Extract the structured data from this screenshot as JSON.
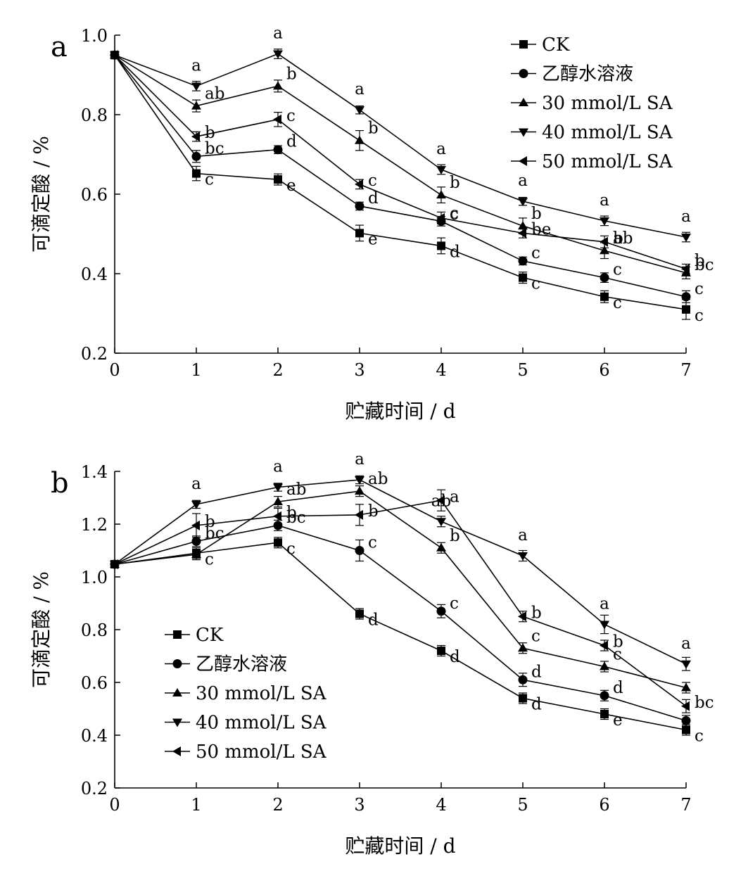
{
  "chart_data": [
    {
      "type": "line",
      "panel_label": "a",
      "xlabel": "贮藏时间 / d",
      "ylabel": "可滴定酸 / %",
      "x": [
        0,
        1,
        2,
        3,
        4,
        5,
        6,
        7
      ],
      "xlim": [
        0,
        7
      ],
      "ylim": [
        0.2,
        1.0
      ],
      "xticks": [
        "0",
        "1",
        "2",
        "3",
        "4",
        "5",
        "6",
        "7"
      ],
      "yticks": [
        "0.2",
        "0.4",
        "0.6",
        "0.8",
        "1.0"
      ],
      "grid": false,
      "legend_position": "top-right",
      "series": [
        {
          "name": "CK",
          "marker": "square",
          "values": [
            0.95,
            0.652,
            0.637,
            0.502,
            0.47,
            0.39,
            0.342,
            0.31
          ],
          "errors": [
            0,
            0.018,
            0.014,
            0.02,
            0.02,
            0.014,
            0.015,
            0.025
          ],
          "labels": [
            "",
            "c",
            "e",
            "e",
            "d",
            "c",
            "c",
            "c"
          ]
        },
        {
          "name": "乙醇水溶液",
          "marker": "circle",
          "values": [
            0.95,
            0.695,
            0.712,
            0.57,
            0.532,
            0.432,
            0.39,
            0.342
          ],
          "errors": [
            0,
            0.015,
            0.01,
            0.01,
            0.012,
            0.01,
            0.012,
            0.015
          ],
          "labels": [
            "",
            "bc",
            "d",
            "d",
            "c",
            "c",
            "c",
            "c"
          ]
        },
        {
          "name": "30 mmol/L SA",
          "marker": "triangle-up",
          "values": [
            0.95,
            0.822,
            0.872,
            0.735,
            0.598,
            0.52,
            0.458,
            0.402
          ],
          "errors": [
            0,
            0.015,
            0.015,
            0.025,
            0.02,
            0.02,
            0.02,
            0.015
          ],
          "labels": [
            "",
            "ab",
            "b",
            "b",
            "b",
            "b",
            "b",
            "b"
          ]
        },
        {
          "name": "40 mmol/L SA",
          "marker": "triangle-down",
          "values": [
            0.95,
            0.872,
            0.953,
            0.812,
            0.662,
            0.582,
            0.533,
            0.492
          ],
          "errors": [
            0,
            0.012,
            0.012,
            0.01,
            0.012,
            0.01,
            0.012,
            0.012
          ],
          "labels": [
            "",
            "a",
            "a",
            "a",
            "a",
            "a",
            "a",
            "a"
          ]
        },
        {
          "name": "50 mmol/L SA",
          "marker": "triangle-left",
          "values": [
            0.95,
            0.745,
            0.788,
            0.625,
            0.54,
            0.502,
            0.48,
            0.412
          ],
          "errors": [
            0,
            0.012,
            0.018,
            0.012,
            0.015,
            0.012,
            0.015,
            0.012
          ],
          "labels": [
            "",
            "b",
            "c",
            "c",
            "c",
            "be",
            "ab",
            "bc"
          ]
        }
      ]
    },
    {
      "type": "line",
      "panel_label": "b",
      "xlabel": "贮藏时间 / d",
      "ylabel": "可滴定酸 / %",
      "x": [
        0,
        1,
        2,
        3,
        4,
        5,
        6,
        7
      ],
      "xlim": [
        0,
        7
      ],
      "ylim": [
        0.2,
        1.4
      ],
      "xticks": [
        "0",
        "1",
        "2",
        "3",
        "4",
        "5",
        "6",
        "7"
      ],
      "yticks": [
        "0.2",
        "0.4",
        "0.6",
        "0.8",
        "1.0",
        "1.2",
        "1.4"
      ],
      "grid": false,
      "legend_position": "bottom-left",
      "series": [
        {
          "name": "CK",
          "marker": "square",
          "values": [
            1.048,
            1.09,
            1.13,
            0.86,
            0.72,
            0.54,
            0.48,
            0.42
          ],
          "errors": [
            0,
            0.02,
            0.02,
            0.02,
            0.02,
            0.02,
            0.02,
            0.02
          ],
          "labels": [
            "",
            "c",
            "c",
            "d",
            "d",
            "d",
            "e",
            "c"
          ]
        },
        {
          "name": "乙醇水溶液",
          "marker": "circle",
          "values": [
            1.048,
            1.135,
            1.195,
            1.1,
            0.87,
            0.61,
            0.55,
            0.455
          ],
          "errors": [
            0,
            0.02,
            0.02,
            0.04,
            0.025,
            0.025,
            0.02,
            0.02
          ],
          "labels": [
            "",
            "bc",
            "bc",
            "c",
            "c",
            "d",
            "d",
            ""
          ]
        },
        {
          "name": "30 mmol/L SA",
          "marker": "triangle-up",
          "values": [
            1.048,
            1.085,
            1.285,
            1.325,
            1.11,
            0.73,
            0.66,
            0.58
          ],
          "errors": [
            0,
            0.02,
            0.02,
            0.02,
            0.02,
            0.02,
            0.02,
            0.02
          ],
          "labels": [
            "",
            "",
            "ab",
            "ab",
            "b",
            "c",
            "c",
            ""
          ]
        },
        {
          "name": "40 mmol/L SA",
          "marker": "triangle-down",
          "values": [
            1.048,
            1.275,
            1.34,
            1.368,
            1.21,
            1.08,
            0.82,
            0.67
          ],
          "errors": [
            0,
            0.015,
            0.015,
            0.015,
            0.02,
            0.02,
            0.035,
            0.025
          ],
          "labels": [
            "",
            "a",
            "a",
            "a",
            "ab",
            "a",
            "a",
            "a"
          ]
        },
        {
          "name": "50 mmol/L SA",
          "marker": "triangle-left",
          "values": [
            1.048,
            1.195,
            1.23,
            1.235,
            1.29,
            0.85,
            0.74,
            0.51
          ],
          "errors": [
            0,
            0.045,
            0.03,
            0.04,
            0.04,
            0.02,
            0.02,
            0.025
          ],
          "labels": [
            "",
            "b",
            "b",
            "b",
            "a",
            "b",
            "b",
            "bc"
          ]
        }
      ]
    }
  ]
}
